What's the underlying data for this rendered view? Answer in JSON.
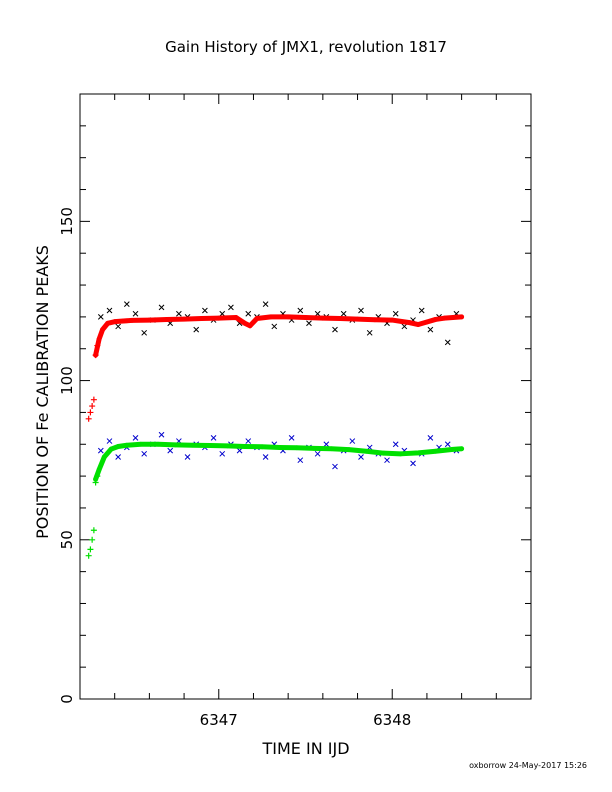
{
  "chart_data": {
    "type": "scatter",
    "title": "Gain History of JMX1, revolution 1817",
    "xlabel": "TIME IN IJD",
    "ylabel": "POSITION OF Fe CALIBRATION PEAKS",
    "xlim": [
      6346.2,
      6348.8
    ],
    "ylim": [
      0,
      190
    ],
    "x_ticks": [
      6347,
      6348
    ],
    "y_ticks": [
      0,
      50,
      100,
      150
    ],
    "grid": false,
    "series": [
      {
        "role": "upper-raw",
        "marker": "x",
        "color": "#000000",
        "x": [
          6346.32,
          6346.37,
          6346.42,
          6346.47,
          6346.52,
          6346.57,
          6346.62,
          6346.67,
          6346.72,
          6346.77,
          6346.82,
          6346.87,
          6346.92,
          6346.97,
          6347.02,
          6347.07,
          6347.12,
          6347.17,
          6347.22,
          6347.27,
          6347.32,
          6347.37,
          6347.42,
          6347.47,
          6347.52,
          6347.57,
          6347.62,
          6347.67,
          6347.72,
          6347.77,
          6347.82,
          6347.87,
          6347.92,
          6347.97,
          6348.02,
          6348.07,
          6348.12,
          6348.17,
          6348.22,
          6348.27,
          6348.32,
          6348.37
        ],
        "y": [
          120,
          122,
          117,
          124,
          121,
          115,
          119,
          123,
          118,
          121,
          120,
          116,
          122,
          119,
          121,
          123,
          118,
          121,
          120,
          124,
          117,
          121,
          119,
          122,
          118,
          121,
          120,
          116,
          121,
          119,
          122,
          115,
          120,
          118,
          121,
          117,
          119,
          122,
          116,
          120,
          112,
          121
        ]
      },
      {
        "role": "upper-fit",
        "marker": "dot",
        "color": "#ff0000",
        "x": [
          6346.29,
          6346.31,
          6346.33,
          6346.36,
          6346.4,
          6346.45,
          6346.5,
          6346.6,
          6346.7,
          6346.8,
          6346.9,
          6347.0,
          6347.1,
          6347.15,
          6347.18,
          6347.22,
          6347.3,
          6347.4,
          6347.5,
          6347.6,
          6347.7,
          6347.8,
          6347.9,
          6348.0,
          6348.05,
          6348.1,
          6348.15,
          6348.2,
          6348.25,
          6348.3,
          6348.35,
          6348.4
        ],
        "y": [
          108,
          113,
          116,
          118,
          118.5,
          118.7,
          118.9,
          119,
          119.2,
          119.3,
          119.5,
          119.6,
          119.8,
          118,
          117.2,
          119.5,
          120,
          120,
          119.8,
          119.6,
          119.5,
          119.3,
          119.1,
          119,
          118.6,
          118.2,
          117.6,
          118.4,
          119.2,
          119.6,
          119.8,
          120
        ]
      },
      {
        "role": "upper-early",
        "marker": "+",
        "color": "#ff0000",
        "x": [
          6346.25,
          6346.26,
          6346.27,
          6346.28,
          6346.29,
          6346.3
        ],
        "y": [
          88,
          90,
          92,
          94,
          108,
          111
        ]
      },
      {
        "role": "lower-raw",
        "marker": "x",
        "color": "#0000cc",
        "x": [
          6346.32,
          6346.37,
          6346.42,
          6346.47,
          6346.52,
          6346.57,
          6346.62,
          6346.67,
          6346.72,
          6346.77,
          6346.82,
          6346.87,
          6346.92,
          6346.97,
          6347.02,
          6347.07,
          6347.12,
          6347.17,
          6347.22,
          6347.27,
          6347.32,
          6347.37,
          6347.42,
          6347.47,
          6347.52,
          6347.57,
          6347.62,
          6347.67,
          6347.72,
          6347.77,
          6347.82,
          6347.87,
          6347.92,
          6347.97,
          6348.02,
          6348.07,
          6348.12,
          6348.17,
          6348.22,
          6348.27,
          6348.32,
          6348.37
        ],
        "y": [
          78,
          81,
          76,
          79,
          82,
          77,
          80,
          83,
          78,
          81,
          76,
          80,
          79,
          82,
          77,
          80,
          78,
          81,
          79,
          76,
          80,
          78,
          82,
          75,
          79,
          77,
          80,
          73,
          78,
          81,
          76,
          79,
          77,
          75,
          80,
          78,
          74,
          77,
          82,
          79,
          80,
          78
        ]
      },
      {
        "role": "lower-fit",
        "marker": "dot",
        "color": "#00e000",
        "x": [
          6346.29,
          6346.31,
          6346.34,
          6346.38,
          6346.42,
          6346.47,
          6346.55,
          6346.65,
          6346.75,
          6346.85,
          6346.95,
          6347.05,
          6347.15,
          6347.25,
          6347.35,
          6347.45,
          6347.55,
          6347.65,
          6347.75,
          6347.85,
          6347.95,
          6348.05,
          6348.15,
          6348.25,
          6348.35,
          6348.4
        ],
        "y": [
          69,
          72,
          76,
          78.5,
          79.3,
          79.7,
          80,
          80,
          79.8,
          79.7,
          79.6,
          79.5,
          79.3,
          79.2,
          79,
          78.9,
          78.7,
          78.6,
          78.3,
          77.8,
          77.2,
          77,
          77.3,
          77.8,
          78.4,
          78.6
        ]
      },
      {
        "role": "lower-early",
        "marker": "+",
        "color": "#00e000",
        "x": [
          6346.25,
          6346.26,
          6346.27,
          6346.28,
          6346.29,
          6346.3
        ],
        "y": [
          45,
          47,
          50,
          53,
          68,
          70
        ]
      }
    ]
  },
  "credit": "oxborrow 24-May-2017 15:26"
}
